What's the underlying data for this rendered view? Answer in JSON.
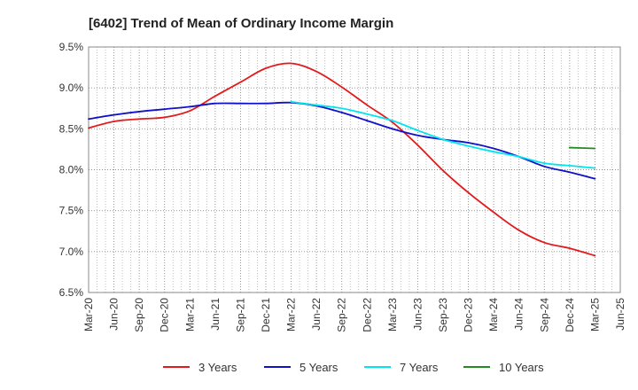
{
  "chart_data": {
    "type": "line",
    "title": "[6402]  Trend of Mean of Ordinary Income Margin",
    "xlabel": "",
    "ylabel": "",
    "x_ticks": [
      "Mar-20",
      "Jun-20",
      "Sep-20",
      "Dec-20",
      "Mar-21",
      "Jun-21",
      "Sep-21",
      "Dec-21",
      "Mar-22",
      "Jun-22",
      "Sep-22",
      "Dec-22",
      "Mar-23",
      "Jun-23",
      "Sep-23",
      "Dec-23",
      "Mar-24",
      "Jun-24",
      "Sep-24",
      "Dec-24",
      "Mar-25",
      "Jun-25"
    ],
    "y_ticks": [
      "6.5%",
      "7.0%",
      "7.5%",
      "8.0%",
      "8.5%",
      "9.0%",
      "9.5%"
    ],
    "ylim": [
      6.5,
      9.5
    ],
    "y_unit": "%",
    "grid": true,
    "legend_position": "bottom",
    "series": [
      {
        "name": "3 Years",
        "color": "#e31a1c",
        "x": [
          "Mar-20",
          "Jun-20",
          "Sep-20",
          "Dec-20",
          "Mar-21",
          "Jun-21",
          "Sep-21",
          "Dec-21",
          "Mar-22",
          "Jun-22",
          "Sep-22",
          "Dec-22",
          "Mar-23",
          "Jun-23",
          "Sep-23",
          "Dec-23",
          "Mar-24",
          "Jun-24",
          "Sep-24",
          "Dec-24",
          "Mar-25"
        ],
        "values": [
          8.51,
          8.59,
          8.62,
          8.64,
          8.72,
          8.9,
          9.07,
          9.24,
          9.3,
          9.2,
          9.01,
          8.79,
          8.58,
          8.3,
          7.99,
          7.72,
          7.48,
          7.26,
          7.11,
          7.04,
          6.95
        ]
      },
      {
        "name": "5 Years",
        "color": "#1010c8",
        "x": [
          "Mar-20",
          "Jun-20",
          "Sep-20",
          "Dec-20",
          "Mar-21",
          "Jun-21",
          "Sep-21",
          "Dec-21",
          "Mar-22",
          "Jun-22",
          "Sep-22",
          "Dec-22",
          "Mar-23",
          "Jun-23",
          "Sep-23",
          "Dec-23",
          "Mar-24",
          "Jun-24",
          "Sep-24",
          "Dec-24",
          "Mar-25"
        ],
        "values": [
          8.62,
          8.67,
          8.71,
          8.74,
          8.77,
          8.81,
          8.81,
          8.81,
          8.82,
          8.78,
          8.7,
          8.6,
          8.5,
          8.42,
          8.37,
          8.33,
          8.26,
          8.16,
          8.04,
          7.97,
          7.89
        ]
      },
      {
        "name": "7 Years",
        "color": "#00e5ee",
        "x": [
          "Mar-22",
          "Jun-22",
          "Sep-22",
          "Dec-22",
          "Mar-23",
          "Jun-23",
          "Sep-23",
          "Dec-23",
          "Mar-24",
          "Jun-24",
          "Sep-24",
          "Dec-24",
          "Mar-25"
        ],
        "values": [
          8.83,
          8.79,
          8.75,
          8.68,
          8.6,
          8.48,
          8.37,
          8.29,
          8.22,
          8.16,
          8.08,
          8.05,
          8.02
        ]
      },
      {
        "name": "10 Years",
        "color": "#228b22",
        "x": [
          "Dec-24",
          "Mar-25"
        ],
        "values": [
          8.27,
          8.26
        ]
      }
    ]
  }
}
